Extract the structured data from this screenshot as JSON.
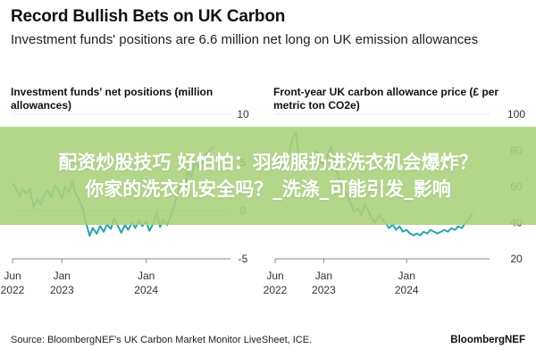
{
  "header": {
    "title": "Record Bullish Bets on UK Carbon",
    "subtitle": "Investment funds' positions are 6.6 million net long on UK emission allowances"
  },
  "chart_data": [
    {
      "type": "line",
      "title": "Investment funds' net positions (million allowances)",
      "color": "#28a3b0",
      "ylim": [
        -5,
        10
      ],
      "yticks": [
        10,
        5,
        0,
        -5
      ],
      "xlim": [
        "2022-06-01",
        "2024-12-31"
      ],
      "xticks": [
        {
          "date": "2022-06-01",
          "line1": "Jun",
          "line2": "2022"
        },
        {
          "date": "2023-01-01",
          "line1": "Jan",
          "line2": "2023"
        },
        {
          "date": "2024-01-01",
          "line1": "Jan",
          "line2": "2024"
        }
      ],
      "points": [
        [
          "2022-06-01",
          2.8
        ],
        [
          "2022-06-15",
          2.4
        ],
        [
          "2022-07-01",
          1.5
        ],
        [
          "2022-07-15",
          2.2
        ],
        [
          "2022-08-01",
          1.8
        ],
        [
          "2022-08-15",
          2.3
        ],
        [
          "2022-09-01",
          0.3
        ],
        [
          "2022-09-15",
          1.2
        ],
        [
          "2022-10-01",
          0.6
        ],
        [
          "2022-10-15",
          1.6
        ],
        [
          "2022-11-01",
          2.1
        ],
        [
          "2022-11-15",
          1.4
        ],
        [
          "2022-12-01",
          2.6
        ],
        [
          "2022-12-15",
          2.2
        ],
        [
          "2023-01-01",
          1.2
        ],
        [
          "2023-01-15",
          2.5
        ],
        [
          "2023-02-01",
          1.9
        ],
        [
          "2023-02-15",
          3.1
        ],
        [
          "2023-03-01",
          1.8
        ],
        [
          "2023-03-15",
          1.2
        ],
        [
          "2023-04-01",
          0.2
        ],
        [
          "2023-04-15",
          -1.2
        ],
        [
          "2023-05-01",
          -2.6
        ],
        [
          "2023-05-15",
          -1.8
        ],
        [
          "2023-06-01",
          -2.4
        ],
        [
          "2023-06-15",
          -1.6
        ],
        [
          "2023-07-01",
          -2.2
        ],
        [
          "2023-07-15",
          -1.4
        ],
        [
          "2023-08-01",
          -1.9
        ],
        [
          "2023-08-15",
          -0.8
        ],
        [
          "2023-09-01",
          -1.6
        ],
        [
          "2023-09-15",
          -2.3
        ],
        [
          "2023-10-01",
          -1.5
        ],
        [
          "2023-10-15",
          -2.0
        ],
        [
          "2023-11-01",
          -1.2
        ],
        [
          "2023-11-15",
          -1.8
        ],
        [
          "2023-12-01",
          -1.0
        ],
        [
          "2023-12-15",
          -1.6
        ],
        [
          "2024-01-01",
          -1.1
        ],
        [
          "2024-01-15",
          -2.1
        ],
        [
          "2024-02-01",
          -1.3
        ],
        [
          "2024-02-15",
          -0.2
        ],
        [
          "2024-03-01",
          -1.7
        ],
        [
          "2024-03-15",
          -0.9
        ],
        [
          "2024-04-01",
          -1.5
        ],
        [
          "2024-04-15",
          -0.6
        ],
        [
          "2024-05-01",
          0.4
        ],
        [
          "2024-05-15",
          1.8
        ],
        [
          "2024-06-01",
          2.9
        ],
        [
          "2024-06-15",
          2.2
        ],
        [
          "2024-07-01",
          4.1
        ],
        [
          "2024-07-15",
          3.5
        ],
        [
          "2024-08-01",
          5.2
        ],
        [
          "2024-08-15",
          4.4
        ],
        [
          "2024-09-01",
          5.0
        ],
        [
          "2024-09-15",
          5.8
        ],
        [
          "2024-10-01",
          6.2
        ],
        [
          "2024-10-15",
          6.6
        ]
      ]
    },
    {
      "type": "line",
      "title": "Front-year UK carbon allowance price (£ per metric ton CO2e)",
      "color": "#28a3b0",
      "ylim": [
        20,
        100
      ],
      "yticks": [
        100,
        80,
        60,
        40,
        20
      ],
      "xlim": [
        "2022-06-01",
        "2024-12-31"
      ],
      "xticks": [
        {
          "date": "2022-06-01",
          "line1": "Jun",
          "line2": "2022"
        },
        {
          "date": "2023-01-01",
          "line1": "Jan",
          "line2": "2023"
        },
        {
          "date": "2024-01-01",
          "line1": "Jan",
          "line2": "2024"
        }
      ],
      "points": [
        [
          "2022-06-01",
          72
        ],
        [
          "2022-06-15",
          76
        ],
        [
          "2022-07-01",
          70
        ],
        [
          "2022-07-15",
          74
        ],
        [
          "2022-08-01",
          78
        ],
        [
          "2022-08-15",
          86
        ],
        [
          "2022-09-01",
          90
        ],
        [
          "2022-09-15",
          75
        ],
        [
          "2022-10-01",
          70
        ],
        [
          "2022-10-15",
          72
        ],
        [
          "2022-11-01",
          76
        ],
        [
          "2022-11-15",
          78
        ],
        [
          "2022-12-01",
          80
        ],
        [
          "2022-12-15",
          74
        ],
        [
          "2023-01-01",
          72
        ],
        [
          "2023-01-15",
          76
        ],
        [
          "2023-02-01",
          82
        ],
        [
          "2023-02-15",
          75
        ],
        [
          "2023-03-01",
          68
        ],
        [
          "2023-03-15",
          62
        ],
        [
          "2023-04-01",
          57
        ],
        [
          "2023-04-15",
          55
        ],
        [
          "2023-05-01",
          50
        ],
        [
          "2023-05-15",
          46
        ],
        [
          "2023-06-01",
          48
        ],
        [
          "2023-06-15",
          44
        ],
        [
          "2023-07-01",
          50
        ],
        [
          "2023-07-15",
          47
        ],
        [
          "2023-08-01",
          42
        ],
        [
          "2023-08-15",
          40
        ],
        [
          "2023-09-01",
          44
        ],
        [
          "2023-09-15",
          42
        ],
        [
          "2023-10-01",
          40
        ],
        [
          "2023-10-15",
          37
        ],
        [
          "2023-11-01",
          39
        ],
        [
          "2023-11-15",
          36
        ],
        [
          "2023-12-01",
          38
        ],
        [
          "2023-12-15",
          35
        ],
        [
          "2024-01-01",
          36
        ],
        [
          "2024-01-15",
          34
        ],
        [
          "2024-02-01",
          33
        ],
        [
          "2024-02-15",
          34
        ],
        [
          "2024-03-01",
          33
        ],
        [
          "2024-03-15",
          35
        ],
        [
          "2024-04-01",
          34
        ],
        [
          "2024-04-15",
          36
        ],
        [
          "2024-05-01",
          35
        ],
        [
          "2024-05-15",
          34
        ],
        [
          "2024-06-01",
          35
        ],
        [
          "2024-06-15",
          36
        ],
        [
          "2024-07-01",
          35
        ],
        [
          "2024-07-15",
          37
        ],
        [
          "2024-08-01",
          36
        ],
        [
          "2024-08-15",
          38
        ],
        [
          "2024-09-01",
          37
        ],
        [
          "2024-09-15",
          40
        ],
        [
          "2024-10-01",
          42
        ],
        [
          "2024-10-15",
          45
        ]
      ]
    }
  ],
  "overlay": {
    "line1": "配资炒股技巧 好怕怕：羽绒服扔进洗衣机会爆炸？",
    "line2": "你家的洗衣机安全吗？_洗涤_可能引发_影响"
  },
  "footer": {
    "source": "Source: BloombergNEF's UK Carbon Market Monitor LiveSheet, ICE.",
    "brand": "BloombergNEF"
  }
}
